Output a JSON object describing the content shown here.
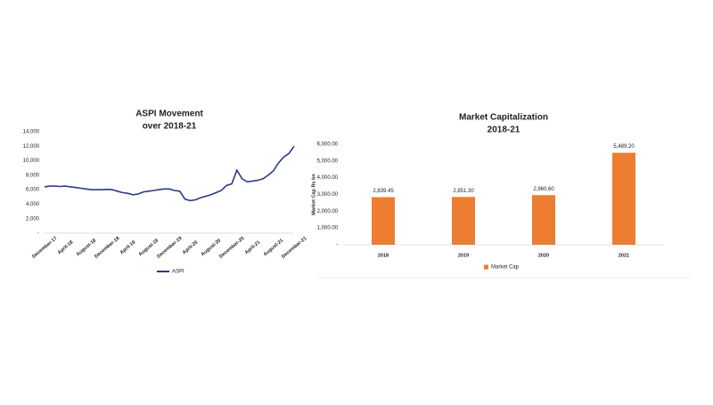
{
  "chart_data": [
    {
      "type": "line",
      "title": "ASPI Movement",
      "subtitle": "over 2018-21",
      "categories": [
        "December-17",
        null,
        null,
        null,
        "April-18",
        null,
        null,
        null,
        "August-18",
        null,
        null,
        null,
        "December-18",
        null,
        null,
        null,
        "April-19",
        null,
        null,
        null,
        "August-19",
        null,
        null,
        null,
        "December-19",
        null,
        null,
        null,
        "April-20",
        null,
        null,
        null,
        "August-20",
        null,
        null,
        null,
        "December-20",
        null,
        null,
        null,
        "April-21",
        null,
        null,
        null,
        "August-21",
        null,
        null,
        null,
        "December-21"
      ],
      "series": [
        {
          "name": "ASPI",
          "color": "#2e3a87",
          "values": [
            6400,
            6500,
            6500,
            6450,
            6500,
            6400,
            6300,
            6200,
            6100,
            6000,
            6000,
            6000,
            6050,
            6000,
            5800,
            5600,
            5500,
            5300,
            5400,
            5700,
            5800,
            5900,
            6000,
            6100,
            6100,
            5900,
            5800,
            4700,
            4500,
            4600,
            4900,
            5100,
            5300,
            5600,
            5900,
            6600,
            6800,
            8700,
            7500,
            7100,
            7200,
            7300,
            7500,
            8000,
            8600,
            9700,
            10500,
            11000,
            12000
          ]
        }
      ],
      "ylim": [
        0,
        14000
      ],
      "yticks": [
        {
          "value": 0,
          "label": "-"
        },
        {
          "value": 2000,
          "label": "2,000"
        },
        {
          "value": 4000,
          "label": "4,000"
        },
        {
          "value": 6000,
          "label": "6,000"
        },
        {
          "value": 8000,
          "label": "8,000"
        },
        {
          "value": 10000,
          "label": "10,000"
        },
        {
          "value": 12000,
          "label": "12,000"
        },
        {
          "value": 14000,
          "label": "14,000"
        }
      ],
      "legend": "bottom"
    },
    {
      "type": "bar",
      "title": "Market Capitalization",
      "subtitle": "2018-21",
      "y_label": "Market Cap Rs bn",
      "categories": [
        "2018",
        "2019",
        "2020",
        "2021"
      ],
      "series": [
        {
          "name": "Market Cap",
          "color": "#ed7d31",
          "values": [
            2839.45,
            2851.3,
            2960.6,
            5489.2
          ],
          "value_labels": [
            "2,839.45",
            "2,851.30",
            "2,960.60",
            "5,489.20"
          ]
        }
      ],
      "ylim": [
        0,
        6000
      ],
      "yticks": [
        {
          "value": 0,
          "label": "-"
        },
        {
          "value": 1000,
          "label": "1,000.00"
        },
        {
          "value": 2000,
          "label": "2,000.00"
        },
        {
          "value": 3000,
          "label": "3,000.00"
        },
        {
          "value": 4000,
          "label": "4,000.00"
        },
        {
          "value": 5000,
          "label": "5,000.00"
        },
        {
          "value": 6000,
          "label": "6,000.00"
        }
      ],
      "legend": "bottom"
    }
  ]
}
